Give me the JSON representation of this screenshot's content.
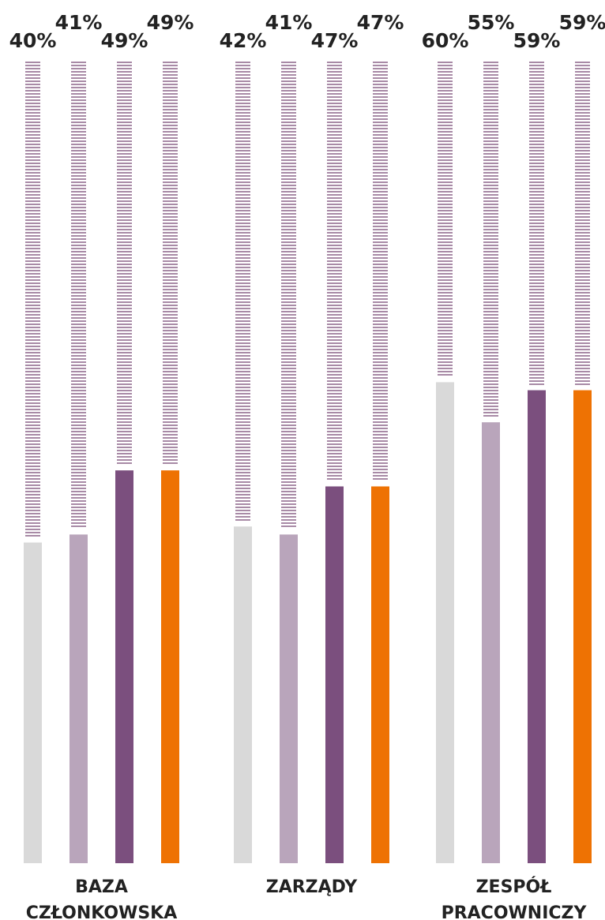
{
  "chart_data": {
    "type": "bar",
    "categories": [
      "BAZA CZŁONKOWSKA",
      "ZARZĄDY",
      "ZESPÓŁ PRACOWNICZY"
    ],
    "category_lines": [
      [
        "BAZA",
        "CZŁONKOWSKA"
      ],
      [
        "ZARZĄDY"
      ],
      [
        "ZESPÓŁ",
        "PRACOWNICZY"
      ]
    ],
    "series": [
      {
        "color": "#d9d9d9",
        "values": [
          40,
          42,
          60
        ]
      },
      {
        "color": "#b9a5bb",
        "values": [
          41,
          41,
          55
        ]
      },
      {
        "color": "#7b4f7e",
        "values": [
          49,
          47,
          59
        ]
      },
      {
        "color": "#ee7203",
        "values": [
          49,
          47,
          59
        ]
      }
    ],
    "value_labels": [
      [
        "40%",
        "41%",
        "49%",
        "49%"
      ],
      [
        "42%",
        "41%",
        "47%",
        "47%"
      ],
      [
        "60%",
        "55%",
        "59%",
        "59%"
      ]
    ],
    "ylim": [
      0,
      100
    ],
    "remainder_style": "dashed",
    "remainder_color": "#a88aa6",
    "grid": false,
    "legend": "none"
  }
}
